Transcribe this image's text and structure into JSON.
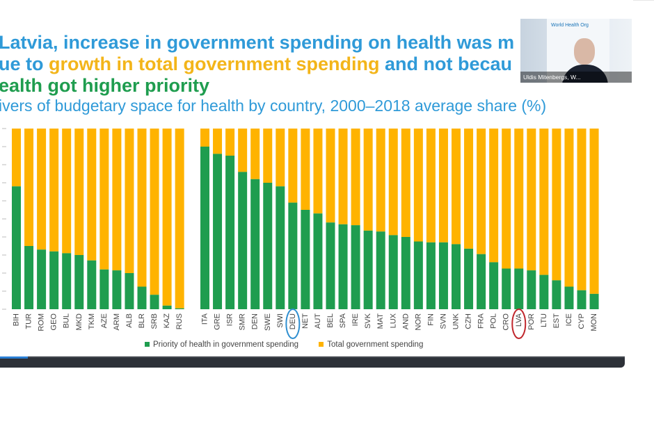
{
  "slide": {
    "title_line1": "Latvia, increase in government spending on health was m",
    "title_line2_start": "ue to ",
    "title_line2_highlight": "growth in total government spending",
    "title_line2_end": " and not becau",
    "title_line3": "ealth got higher priority",
    "subtitle": "ivers of budgetary space for health by country, 2000–2018 average share (%)"
  },
  "video": {
    "participant_name": "Uldis Mitenbergs, W...",
    "background_text": "World Health Org"
  },
  "colors": {
    "priority": "#1f9d4f",
    "total": "#ffb300",
    "circle_blue": "#2f8fd0",
    "circle_red": "#c0262c"
  },
  "chart_data": {
    "type": "bar",
    "stacked": true,
    "ylim": [
      0,
      100
    ],
    "series": [
      {
        "name": "Priority of health in government spending",
        "color": "#1f9d4f"
      },
      {
        "name": "Total government spending",
        "color": "#ffb300"
      }
    ],
    "groups": [
      {
        "categories": [
          "BIH",
          "TUR",
          "ROM",
          "GEO",
          "BUL",
          "MKD",
          "TKM",
          "AZE",
          "ARM",
          "ALB",
          "BLR",
          "SRB",
          "KAZ",
          "RUS"
        ],
        "priority": [
          68,
          35,
          33,
          32,
          31,
          30,
          27,
          22,
          21.5,
          20,
          12.5,
          8,
          2,
          0.5
        ]
      },
      {
        "categories": [
          "ITA",
          "GRE",
          "ISR",
          "SMR",
          "DEN",
          "SWE",
          "SWI",
          "DEU",
          "NET",
          "AUT",
          "BEL",
          "SPA",
          "IRE",
          "SVK",
          "MAT",
          "LUX",
          "AND",
          "NOR",
          "FIN",
          "SVN",
          "UNK",
          "CZH",
          "FRA",
          "POL",
          "CRO",
          "LVA",
          "POR",
          "LTU",
          "EST",
          "ICE",
          "CYP",
          "MON"
        ],
        "priority": [
          90,
          86,
          85,
          76,
          72,
          70,
          68,
          59,
          55,
          53,
          48,
          47,
          46.5,
          43.5,
          43,
          41,
          40,
          37.5,
          37,
          37,
          36,
          33.5,
          30.5,
          26,
          22.5,
          22.5,
          21.5,
          19,
          16,
          12.5,
          10.5,
          8.5
        ]
      }
    ],
    "highlighted": [
      {
        "category": "DEU",
        "circle_color": "#2f8fd0"
      },
      {
        "category": "LVA",
        "circle_color": "#c0262c"
      }
    ]
  }
}
